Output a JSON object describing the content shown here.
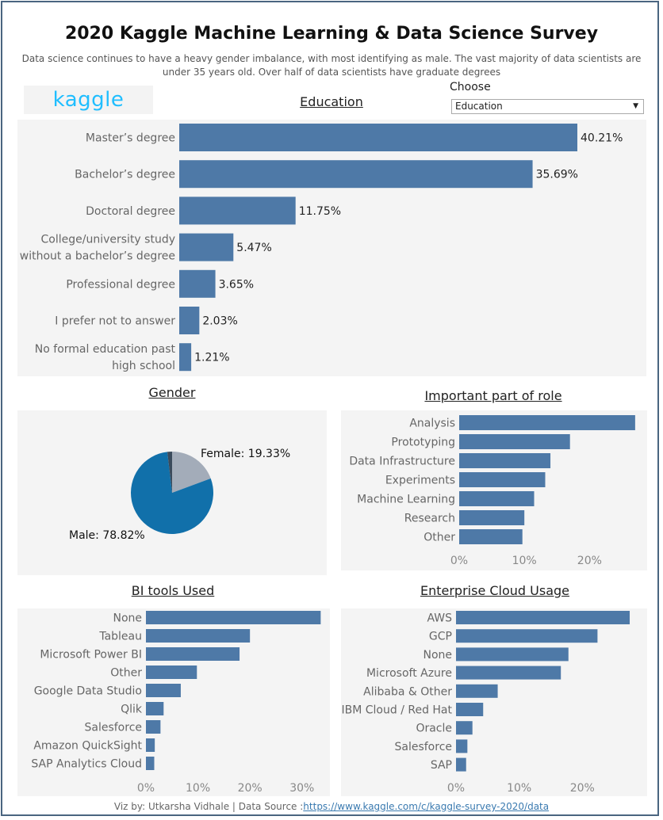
{
  "header": {
    "title": "2020 Kaggle Machine Learning & Data Science Survey",
    "subtitle_line1": "Data science continues to have a heavy gender imbalance, with most identifying as male. The vast majority of data scientists are",
    "subtitle_line2": "under 35 years old. Over half of data scientists have graduate degrees",
    "logo": "kaggle",
    "choose_label": "Choose",
    "select_value": "Education"
  },
  "colors": {
    "bar": "#4e79a7",
    "pie_male": "#1170aa",
    "pie_female": "#a3acb9",
    "pie_other": "#3b4b5c",
    "panel": "#f4f4f4",
    "accent": "#20beff"
  },
  "footer": {
    "prefix": "Viz by: Utkarsha Vidhale | Data Source :",
    "link": "https://www.kaggle.com/c/kaggle-survey-2020/data"
  },
  "chart_data": [
    {
      "id": "education",
      "type": "bar",
      "orientation": "horizontal",
      "title": "Education",
      "categories": [
        [
          "Master’s degree"
        ],
        [
          "Bachelor’s degree"
        ],
        [
          "Doctoral degree"
        ],
        [
          "College/university study",
          "without a bachelor’s degree"
        ],
        [
          "Professional degree"
        ],
        [
          "I prefer not to answer"
        ],
        [
          "No formal education past",
          "high school"
        ]
      ],
      "values": [
        40.21,
        35.69,
        11.75,
        5.47,
        3.65,
        2.03,
        1.21
      ],
      "value_labels": [
        "40.21%",
        "35.69%",
        "11.75%",
        "5.47%",
        "3.65%",
        "2.03%",
        "1.21%"
      ],
      "xlim": [
        0,
        40.21
      ]
    },
    {
      "id": "gender",
      "type": "pie",
      "title": "Gender",
      "slices": [
        {
          "name": "Female",
          "value": 19.33,
          "color": "#a3acb9"
        },
        {
          "name": "Male",
          "value": 78.82,
          "color": "#1170aa"
        },
        {
          "name": "",
          "value": 1.85,
          "color": "#3b4b5c"
        }
      ],
      "labels": [
        "Female: 19.33%",
        "Male: 78.82%"
      ]
    },
    {
      "id": "role",
      "type": "bar",
      "orientation": "horizontal",
      "title": "Important part of role",
      "categories": [
        "Analysis",
        "Prototyping",
        "Data Infrastructure",
        "Experiments",
        "Machine Learning",
        "Research",
        "Other"
      ],
      "values": [
        27,
        17,
        14,
        13.2,
        11.5,
        10,
        9.7
      ],
      "xticks": [
        0,
        10,
        20
      ],
      "xtick_labels": [
        "0%",
        "10%",
        "20%"
      ],
      "xlim": [
        0,
        27.5
      ]
    },
    {
      "id": "bi_tools",
      "type": "bar",
      "orientation": "horizontal",
      "title": "BI tools Used",
      "categories": [
        "None",
        "Tableau",
        "Microsoft Power BI",
        "Other",
        "Google Data Studio",
        "Qlik",
        "Salesforce",
        "Amazon QuickSight",
        "SAP Analytics Cloud"
      ],
      "values": [
        33.6,
        20,
        18,
        9.8,
        6.7,
        3.4,
        2.8,
        1.7,
        1.6
      ],
      "xticks": [
        0,
        10,
        20,
        30
      ],
      "xtick_labels": [
        "0%",
        "10%",
        "20%",
        "30%"
      ],
      "xlim": [
        0,
        34
      ]
    },
    {
      "id": "cloud",
      "type": "bar",
      "orientation": "horizontal",
      "title": "Enterprise Cloud Usage",
      "categories": [
        "AWS",
        "GCP",
        "None",
        "Microsoft Azure",
        "Alibaba & Other",
        "IBM Cloud / Red Hat",
        "Oracle",
        "Salesforce",
        "SAP"
      ],
      "values": [
        27.5,
        22.4,
        17.8,
        16.6,
        6.6,
        4.3,
        2.6,
        1.8,
        1.6
      ],
      "xticks": [
        0,
        10,
        20
      ],
      "xtick_labels": [
        "0%",
        "10%",
        "20%"
      ],
      "xlim": [
        0,
        28
      ]
    }
  ]
}
